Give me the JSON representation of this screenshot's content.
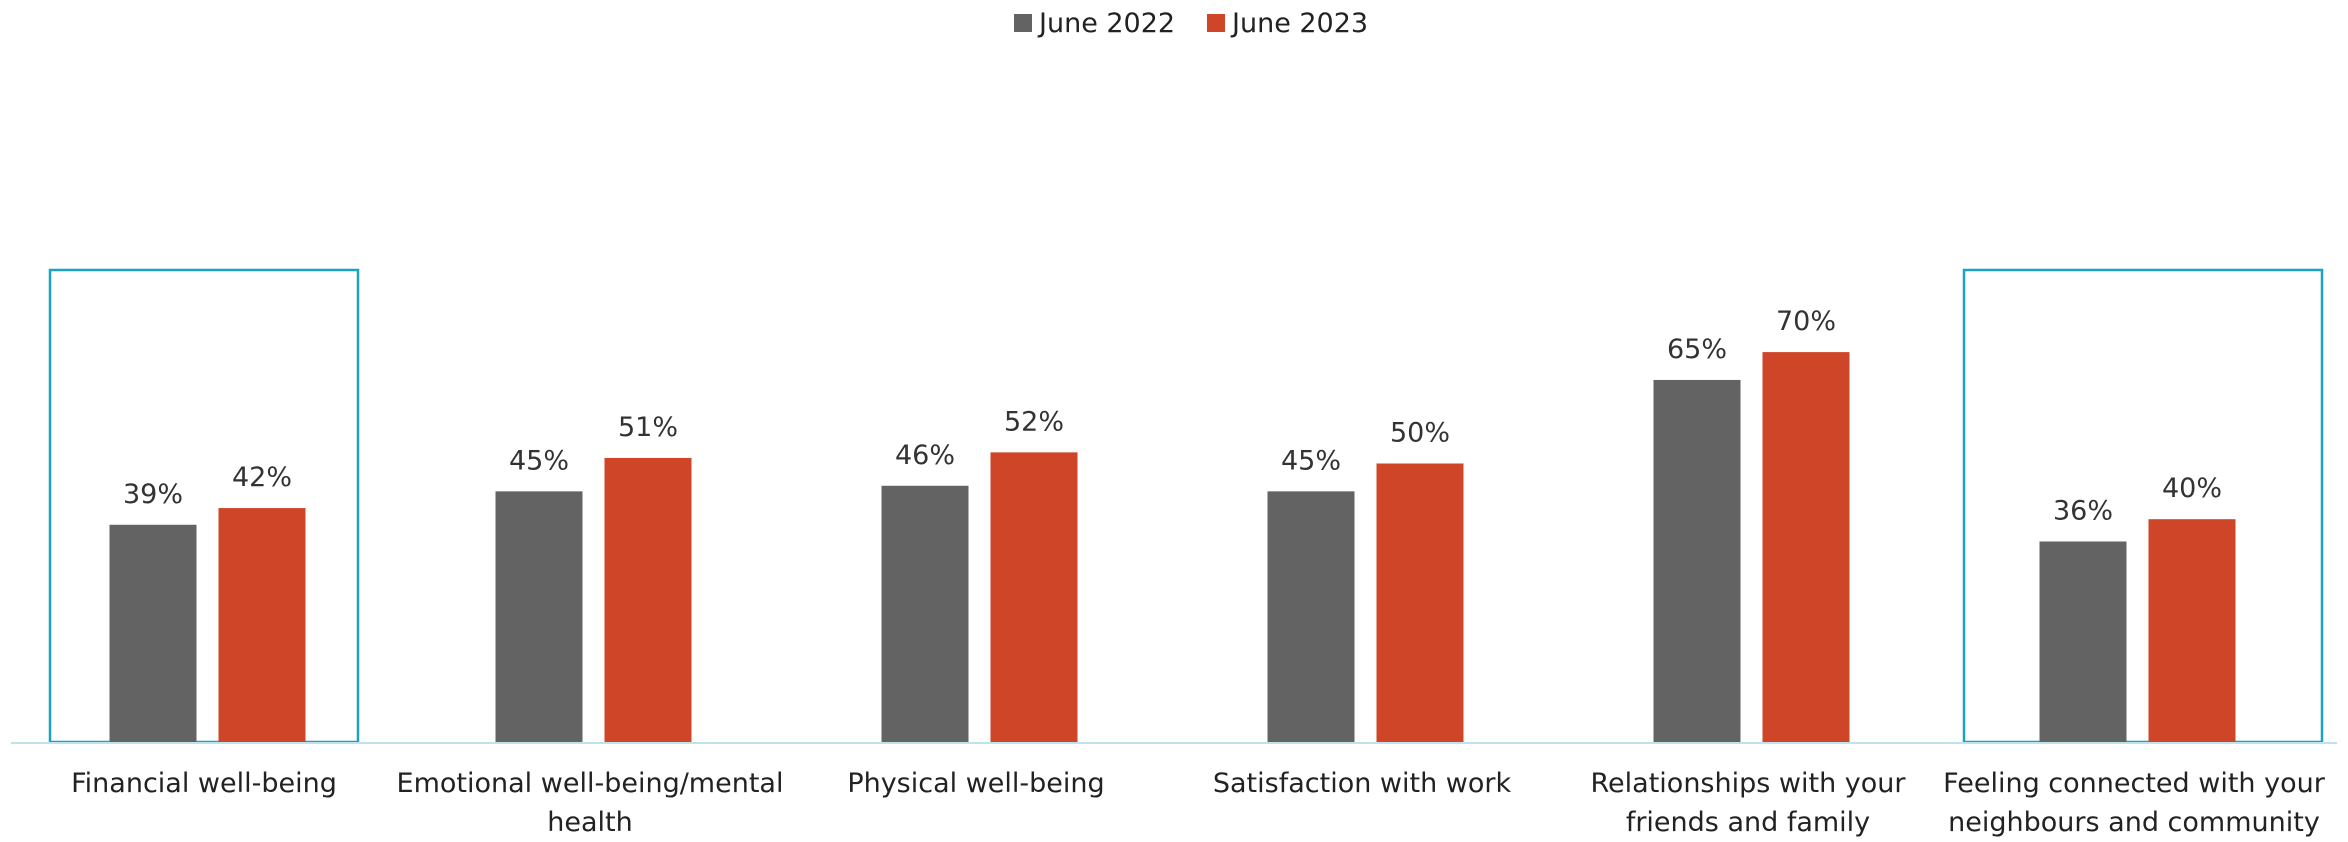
{
  "chart_data": {
    "type": "bar",
    "title": "",
    "xlabel": "",
    "ylabel": "",
    "ylim": [
      0,
      80
    ],
    "grid": false,
    "legend_position": "top-center",
    "categories": [
      [
        "Financial well-being"
      ],
      [
        "Emotional well-being/mental",
        "health"
      ],
      [
        "Physical well-being"
      ],
      [
        "Satisfaction with work"
      ],
      [
        "Relationships with your",
        "friends and family"
      ],
      [
        "Feeling connected with your",
        "neighbours and community"
      ]
    ],
    "highlighted_categories": [
      0,
      5
    ],
    "series": [
      {
        "name": "June 2022",
        "color": "#636363",
        "values": [
          39,
          45,
          46,
          45,
          65,
          36
        ],
        "labels": [
          "39%",
          "45%",
          "46%",
          "45%",
          "65%",
          "36%"
        ]
      },
      {
        "name": "June 2023",
        "color": "#cf4528",
        "values": [
          42,
          51,
          52,
          50,
          70,
          40
        ],
        "labels": [
          "42%",
          "51%",
          "52%",
          "50%",
          "70%",
          "40%"
        ]
      }
    ],
    "colors": {
      "axis": "#bfe3ec",
      "highlight_box": "#1aa3c4"
    }
  }
}
